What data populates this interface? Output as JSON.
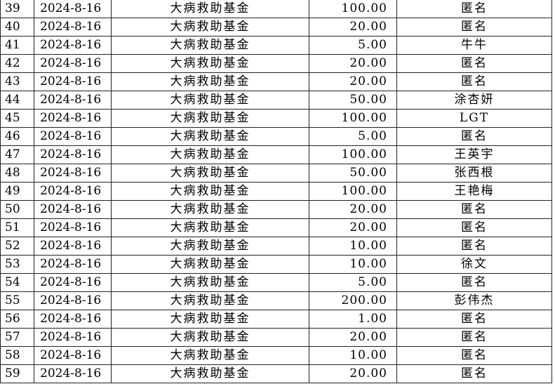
{
  "table": {
    "rows": [
      [
        "39",
        "2024-8-16",
        "大病救助基金",
        "100.00",
        "匿名"
      ],
      [
        "40",
        "2024-8-16",
        "大病救助基金",
        "20.00",
        "匿名"
      ],
      [
        "41",
        "2024-8-16",
        "大病救助基金",
        "5.00",
        "牛牛"
      ],
      [
        "42",
        "2024-8-16",
        "大病救助基金",
        "20.00",
        "匿名"
      ],
      [
        "43",
        "2024-8-16",
        "大病救助基金",
        "20.00",
        "匿名"
      ],
      [
        "44",
        "2024-8-16",
        "大病救助基金",
        "50.00",
        "涂杏妍"
      ],
      [
        "45",
        "2024-8-16",
        "大病救助基金",
        "100.00",
        "LGT"
      ],
      [
        "46",
        "2024-8-16",
        "大病救助基金",
        "5.00",
        "匿名"
      ],
      [
        "47",
        "2024-8-16",
        "大病救助基金",
        "100.00",
        "王英宇"
      ],
      [
        "48",
        "2024-8-16",
        "大病救助基金",
        "50.00",
        "张西根"
      ],
      [
        "49",
        "2024-8-16",
        "大病救助基金",
        "100.00",
        "王艳梅"
      ],
      [
        "50",
        "2024-8-16",
        "大病救助基金",
        "20.00",
        "匿名"
      ],
      [
        "51",
        "2024-8-16",
        "大病救助基金",
        "20.00",
        "匿名"
      ],
      [
        "52",
        "2024-8-16",
        "大病救助基金",
        "10.00",
        "匿名"
      ],
      [
        "53",
        "2024-8-16",
        "大病救助基金",
        "10.00",
        "徐文"
      ],
      [
        "54",
        "2024-8-16",
        "大病救助基金",
        "5.00",
        "匿名"
      ],
      [
        "55",
        "2024-8-16",
        "大病救助基金",
        "200.00",
        "彭伟杰"
      ],
      [
        "56",
        "2024-8-16",
        "大病救助基金",
        "1.00",
        "匿名"
      ],
      [
        "57",
        "2024-8-16",
        "大病救助基金",
        "20.00",
        "匿名"
      ],
      [
        "58",
        "2024-8-16",
        "大病救助基金",
        "10.00",
        "匿名"
      ],
      [
        "59",
        "2024-8-16",
        "大病救助基金",
        "20.00",
        "匿名"
      ]
    ]
  }
}
